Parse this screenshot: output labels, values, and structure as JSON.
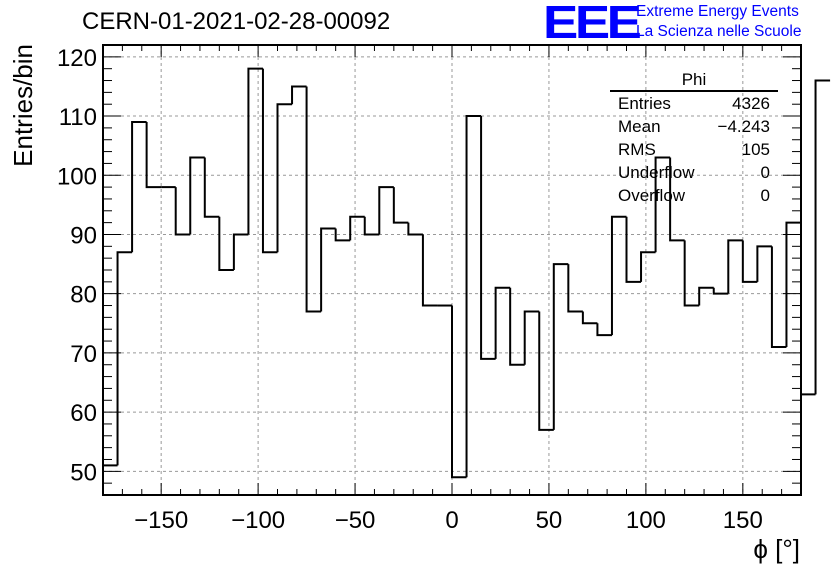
{
  "header": {
    "run_title": "CERN-01-2021-02-28-00092",
    "logo_mark": "EEE",
    "logo_line1": "Extreme Energy Events",
    "logo_line2": "La Scienza nelle Scuole"
  },
  "stats": {
    "title": "Phi",
    "rows": [
      {
        "label": "Entries",
        "value": "4326"
      },
      {
        "label": "Mean",
        "value": "−4.243"
      },
      {
        "label": "RMS",
        "value": "105"
      },
      {
        "label": "Underflow",
        "value": "0"
      },
      {
        "label": "Overflow",
        "value": "0"
      }
    ]
  },
  "colors": {
    "line": "#000000",
    "grid": "#999999",
    "logo": "#0000ff"
  },
  "chart_data": {
    "type": "histogram",
    "xlabel": "ϕ [°]",
    "ylabel": "Entries/bin",
    "xlim": [
      -180,
      180
    ],
    "ylim": [
      46,
      122
    ],
    "grid": true,
    "x_ticks": [
      -150,
      -100,
      -50,
      0,
      50,
      100,
      150
    ],
    "x_tick_labels": [
      "−150",
      "−100",
      "−50",
      "0",
      "50",
      "100",
      "150"
    ],
    "y_ticks": [
      50,
      60,
      70,
      80,
      90,
      100,
      110,
      120
    ],
    "y_tick_labels": [
      "50",
      "60",
      "70",
      "80",
      "90",
      "100",
      "110",
      "120"
    ],
    "bin_width": 7.5,
    "bin_start": -180,
    "values": [
      51,
      87,
      109,
      98,
      98,
      90,
      103,
      93,
      84,
      90,
      118,
      87,
      112,
      115,
      77,
      91,
      89,
      93,
      90,
      98,
      92,
      90,
      78,
      78,
      49,
      110,
      69,
      81,
      68,
      77,
      57,
      85,
      77,
      75,
      73,
      93,
      82,
      87,
      103,
      89,
      78,
      81,
      80,
      89,
      82,
      88,
      71,
      92,
      63,
      116
    ]
  }
}
